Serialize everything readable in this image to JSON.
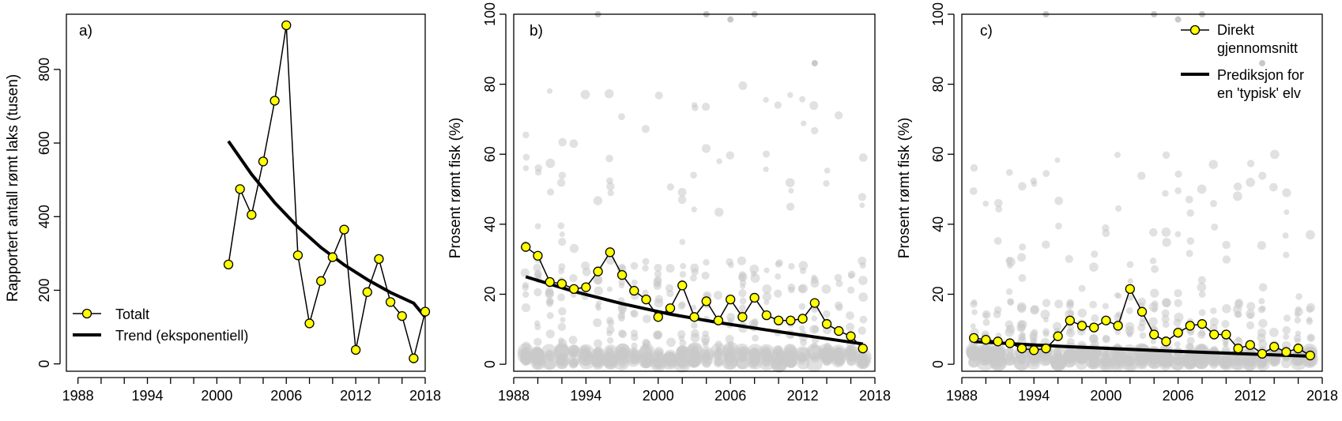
{
  "colors": {
    "marker_fill": "#ffff00",
    "line": "#000000",
    "trend": "#000000",
    "scatter": "#c8c8c8"
  },
  "chart_data": [
    {
      "type": "line",
      "panel_label": "a)",
      "xlabel": "",
      "ylabel": "Rapportert antall rømt laks (tusen)",
      "xlim": [
        1987,
        2018
      ],
      "ylim": [
        -20,
        950
      ],
      "xticks": [
        1988,
        1994,
        2000,
        2006,
        2012,
        2018
      ],
      "yticks": [
        0,
        200,
        400,
        600,
        800
      ],
      "legend_position": "bottom-left",
      "series": [
        {
          "name": "Totalt",
          "style": "line+points",
          "x": [
            2001,
            2002,
            2003,
            2004,
            2005,
            2006,
            2007,
            2008,
            2009,
            2010,
            2011,
            2012,
            2013,
            2014,
            2015,
            2016,
            2017,
            2018
          ],
          "y": [
            270,
            475,
            405,
            550,
            715,
            920,
            295,
            110,
            225,
            290,
            365,
            38,
            195,
            285,
            168,
            130,
            15,
            142
          ]
        },
        {
          "name": "Trend (eksponentiell)",
          "style": "thick-line",
          "x": [
            2001,
            2003,
            2005,
            2007,
            2009,
            2011,
            2013,
            2015,
            2017,
            2018
          ],
          "y": [
            605,
            515,
            438,
            372,
            316,
            269,
            229,
            194,
            165,
            127
          ]
        }
      ]
    },
    {
      "type": "scatter",
      "panel_label": "b)",
      "xlabel": "",
      "ylabel": "Prosent rømt fisk (%)",
      "xlim": [
        1988,
        2018
      ],
      "ylim": [
        -2,
        100
      ],
      "xticks": [
        1988,
        1994,
        2000,
        2006,
        2012,
        2018
      ],
      "yticks": [
        0,
        20,
        40,
        60,
        80,
        100
      ],
      "series": [
        {
          "name": "",
          "style": "line+points",
          "x": [
            1989,
            1990,
            1991,
            1992,
            1993,
            1994,
            1995,
            1996,
            1997,
            1998,
            1999,
            2000,
            2001,
            2002,
            2003,
            2004,
            2005,
            2006,
            2007,
            2008,
            2009,
            2010,
            2011,
            2012,
            2013,
            2014,
            2015,
            2016,
            2017
          ],
          "y": [
            33.5,
            31,
            23.5,
            23,
            21.5,
            22,
            26.5,
            32,
            25.5,
            21,
            18.5,
            13.5,
            16,
            22.5,
            13.5,
            18,
            12.5,
            18.5,
            13.5,
            19,
            14,
            12.5,
            12.5,
            13,
            17.5,
            11.5,
            9.5,
            8,
            4.5
          ]
        },
        {
          "name": "",
          "style": "thick-line",
          "x": [
            1989,
            1993,
            1997,
            2001,
            2005,
            2009,
            2013,
            2017
          ],
          "y": [
            25,
            20.8,
            17.3,
            14.3,
            11.9,
            9.8,
            7.8,
            5.8
          ]
        }
      ]
    },
    {
      "type": "scatter",
      "panel_label": "c)",
      "xlabel": "",
      "ylabel": "Prosent rømt fisk (%)",
      "xlim": [
        1988,
        2018
      ],
      "ylim": [
        -2,
        100
      ],
      "xticks": [
        1988,
        1994,
        2000,
        2006,
        2012,
        2018
      ],
      "yticks": [
        0,
        20,
        40,
        60,
        80,
        100
      ],
      "legend_position": "top-right",
      "series": [
        {
          "name": "Direkt gjennomsnitt",
          "style": "line+points",
          "x": [
            1989,
            1990,
            1991,
            1992,
            1993,
            1994,
            1995,
            1996,
            1997,
            1998,
            1999,
            2000,
            2001,
            2002,
            2003,
            2004,
            2005,
            2006,
            2007,
            2008,
            2009,
            2010,
            2011,
            2012,
            2013,
            2014,
            2015,
            2016,
            2017
          ],
          "y": [
            7.5,
            7,
            6.5,
            6,
            4.5,
            4,
            4.5,
            8,
            12.5,
            11,
            10.5,
            12.5,
            11,
            21.5,
            15,
            8.5,
            6.5,
            9,
            11,
            11.5,
            8.5,
            8.5,
            4.5,
            5.5,
            3,
            5,
            3.5,
            4.5,
            2.5
          ]
        },
        {
          "name": "Prediksjon for en 'typisk' elv",
          "style": "thick-line",
          "x": [
            1989,
            1993,
            1997,
            2001,
            2005,
            2009,
            2013,
            2017
          ],
          "y": [
            6.5,
            5.7,
            5,
            4.4,
            3.8,
            3.3,
            2.8,
            2.3
          ]
        }
      ]
    }
  ],
  "legend_a": {
    "item1": "Totalt",
    "item2": "Trend (eksponentiell)"
  },
  "legend_c": {
    "item1_line1": "Direkt",
    "item1_line2": "gjennomsnitt",
    "item2_line1": "Prediksjon for",
    "item2_line2": "en 'typisk' elv"
  }
}
